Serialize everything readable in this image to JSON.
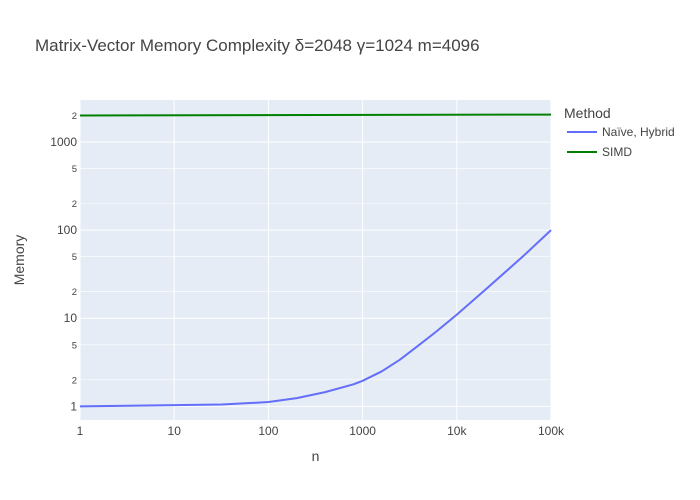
{
  "chart_data": {
    "type": "line",
    "title": "Matrix-Vector Memory Complexity δ=2048 γ=1024 m=4096",
    "xlabel": "n",
    "ylabel": "Memory",
    "x_scale": "log",
    "y_scale": "log",
    "xlim": [
      1,
      100000
    ],
    "ylim": [
      0.7,
      3000
    ],
    "x_tick_values": [
      1,
      10,
      100,
      1000,
      10000,
      100000
    ],
    "x_tick_labels": [
      "1",
      "10",
      "100",
      "1000",
      "10k",
      "100k"
    ],
    "y_major_ticks": [
      {
        "value": 1,
        "label": "1"
      },
      {
        "value": 10,
        "label": "10"
      },
      {
        "value": 100,
        "label": "100"
      },
      {
        "value": 1000,
        "label": "1000"
      }
    ],
    "y_minor_ticks": [
      {
        "value": 2,
        "label": "2"
      },
      {
        "value": 5,
        "label": "5"
      },
      {
        "value": 20,
        "label": "2"
      },
      {
        "value": 50,
        "label": "5"
      },
      {
        "value": 200,
        "label": "2"
      },
      {
        "value": 500,
        "label": "5"
      },
      {
        "value": 2000,
        "label": "2"
      }
    ],
    "grid": true,
    "legend_title": "Method",
    "legend_position": "right",
    "plot_bgcolor": "#E5ECF6",
    "series": [
      {
        "name": "Naïve, Hybrid",
        "color": "#636EFA",
        "x": [
          1,
          2,
          4,
          8,
          16,
          32,
          64,
          100,
          200,
          400,
          800,
          1000,
          1600,
          2500,
          4000,
          6000,
          10000,
          20000,
          50000,
          100000
        ],
        "y": [
          1.0,
          1.01,
          1.02,
          1.03,
          1.04,
          1.05,
          1.09,
          1.12,
          1.24,
          1.45,
          1.78,
          1.95,
          2.5,
          3.4,
          5.0,
          7.0,
          11.0,
          21.0,
          50.0,
          100.0
        ]
      },
      {
        "name": "SIMD",
        "color": "#008000",
        "x": [
          1,
          100000
        ],
        "y": [
          2000,
          2050
        ]
      }
    ]
  }
}
